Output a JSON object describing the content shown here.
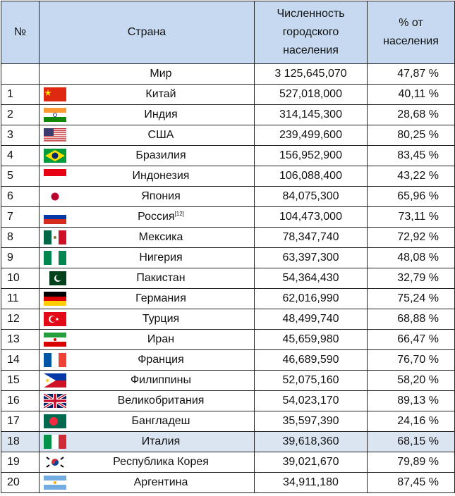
{
  "table": {
    "header": [
      "№",
      "Страна",
      "Численность городского населения",
      "% от населения"
    ],
    "rows": [
      {
        "country": "Мир",
        "population": "3 125,645,070",
        "percent": "47,87 %"
      },
      {
        "rank": "1",
        "country": "Китай",
        "population": "527,018,000",
        "percent": "40,11 %"
      },
      {
        "rank": "2",
        "country": "Индия",
        "population": "314,145,300",
        "percent": "28,68 %"
      },
      {
        "rank": "3",
        "country": "США",
        "population": "239,499,600",
        "percent": "80,25 %"
      },
      {
        "rank": "4",
        "country": "Бразилия",
        "population": "156,952,900",
        "percent": "83,45 %"
      },
      {
        "rank": "5",
        "country": "Индонезия",
        "population": "106,088,400",
        "percent": "43,22 %"
      },
      {
        "rank": "6",
        "country": "Япония",
        "population": "84,075,300",
        "percent": "65,96 %"
      },
      {
        "rank": "7",
        "country": "Россия",
        "note": "[12]",
        "population": "104,473,000",
        "percent": "73,11 %"
      },
      {
        "rank": "8",
        "country": "Мексика",
        "population": "78,347,740",
        "percent": "72,92 %"
      },
      {
        "rank": "9",
        "country": "Нигерия",
        "population": "63,397,300",
        "percent": "48,08 %"
      },
      {
        "rank": "10",
        "country": "Пакистан",
        "population": "54,364,430",
        "percent": "32,79 %"
      },
      {
        "rank": "11",
        "country": "Германия",
        "population": "62,016,990",
        "percent": "75,24 %"
      },
      {
        "rank": "12",
        "country": "Турция",
        "population": "48,499,740",
        "percent": "68,88 %"
      },
      {
        "rank": "13",
        "country": "Иран",
        "population": "45,659,980",
        "percent": "66,47 %"
      },
      {
        "rank": "14",
        "country": "Франция",
        "population": "46,689,590",
        "percent": "76,70 %"
      },
      {
        "rank": "15",
        "country": "Филиппины",
        "population": "52,075,160",
        "percent": "58,20 %"
      },
      {
        "rank": "16",
        "country": "Великобритания",
        "population": "54,023,170",
        "percent": "89,13 %"
      },
      {
        "rank": "17",
        "country": "Бангладеш",
        "population": "35,597,390",
        "percent": "24,16 %"
      },
      {
        "rank": "18",
        "country": "Италия",
        "population": "39,618,360",
        "percent": "68,15 %"
      },
      {
        "rank": "19",
        "country": "Республика Корея",
        "population": "39,021,670",
        "percent": "79,89 %"
      },
      {
        "rank": "20",
        "country": "Аргентина",
        "population": "34,911,180",
        "percent": "87,45 %"
      }
    ]
  }
}
